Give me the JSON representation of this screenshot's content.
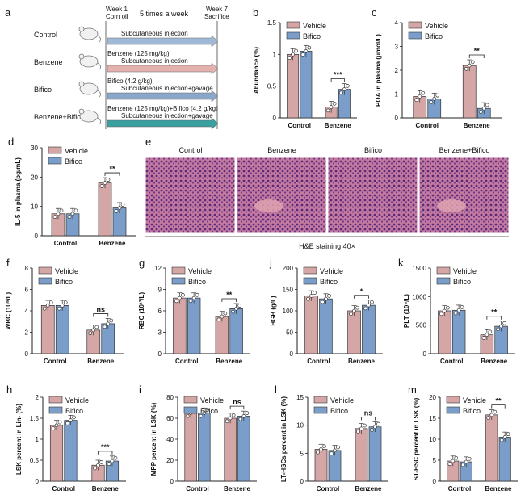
{
  "colors": {
    "vehicle": "#d4a6a6",
    "bifico": "#7a9ec9",
    "arrow_control": "#9fb9d6",
    "arrow_benzene": "#e3b1ae",
    "arrow_bifico": "#8aa7c9",
    "arrow_combo": "#3a9f9f",
    "he": "#b8557e"
  },
  "panel_a": {
    "letter": "a",
    "week1": "Week 1",
    "corn_oil": "Corn oil",
    "freq": "5 times a week",
    "week7": "Week 7",
    "sacrifice": "Sacrifice",
    "groups": [
      {
        "name": "Control",
        "label": "",
        "sub": "Subcutaneous injection",
        "icon": "mouse-icon"
      },
      {
        "name": "Benzene",
        "label": "Benzene (125 mg/kg)",
        "sub": "Subcutaneous injection",
        "icon": "mouse-icon"
      },
      {
        "name": "Bifico",
        "label": "Bifico (4.2 g/kg)",
        "sub": "Subcutaneous injection+gavage",
        "icon": "mouse-icon"
      },
      {
        "name": "Benzene+Bifico",
        "label": "Benzene (125 mg/kg)+Bifico (4.2 g/kg)",
        "sub": "Subcutaneous injection+gavage",
        "icon": "mouse-icon"
      }
    ]
  },
  "panel_e": {
    "letter": "e",
    "titles": [
      "Control",
      "Benzene",
      "Bifico",
      "Benzene+Bifico"
    ],
    "caption": "H&E staining 40×"
  },
  "legend": {
    "vehicle": "Vehicle",
    "bifico": "Bifico"
  },
  "chart_data": [
    {
      "id": "b",
      "type": "bar",
      "ylabel": "Abundance (%)",
      "categories": [
        "Control",
        "Benzene"
      ],
      "ylim": [
        0,
        1.5
      ],
      "yticks": [
        0,
        0.5,
        1.0,
        1.5
      ],
      "series": [
        {
          "name": "Vehicle",
          "values": [
            1.0,
            0.17
          ]
        },
        {
          "name": "Bifico",
          "values": [
            1.05,
            0.45
          ]
        }
      ],
      "sig": {
        "label": "***"
      }
    },
    {
      "id": "c",
      "type": "bar",
      "ylabel": "POA in plasma (μmol/L)",
      "categories": [
        "Control",
        "Benzene"
      ],
      "ylim": [
        0,
        4
      ],
      "yticks": [
        0,
        1,
        2,
        3,
        4
      ],
      "series": [
        {
          "name": "Vehicle",
          "values": [
            0.9,
            2.2
          ]
        },
        {
          "name": "Bifico",
          "values": [
            0.8,
            0.4
          ]
        }
      ],
      "sig": {
        "label": "**"
      }
    },
    {
      "id": "d",
      "type": "bar",
      "ylabel": "IL-5 in plasma (pg/mL)",
      "categories": [
        "Control",
        "Benzene"
      ],
      "ylim": [
        0,
        30
      ],
      "yticks": [
        0,
        10,
        20,
        30
      ],
      "series": [
        {
          "name": "Vehicle",
          "values": [
            7.5,
            18
          ]
        },
        {
          "name": "Bifico",
          "values": [
            7.5,
            9.5
          ]
        }
      ],
      "sig": {
        "label": "**"
      }
    },
    {
      "id": "f",
      "type": "bar",
      "ylabel": "WBC (10⁹/L)",
      "categories": [
        "Control",
        "Benzene"
      ],
      "ylim": [
        0,
        8
      ],
      "yticks": [
        0,
        2,
        4,
        6,
        8
      ],
      "series": [
        {
          "name": "Vehicle",
          "values": [
            4.5,
            2.2
          ]
        },
        {
          "name": "Bifico",
          "values": [
            4.5,
            2.8
          ]
        }
      ],
      "sig": {
        "label": "ns"
      }
    },
    {
      "id": "g",
      "type": "bar",
      "ylabel": "RBC (10¹²/L)",
      "categories": [
        "Control",
        "Benzene"
      ],
      "ylim": [
        0,
        12
      ],
      "yticks": [
        0,
        3,
        6,
        9,
        12
      ],
      "series": [
        {
          "name": "Vehicle",
          "values": [
            7.8,
            5.2
          ]
        },
        {
          "name": "Bifico",
          "values": [
            7.8,
            6.3
          ]
        }
      ],
      "sig": {
        "label": "**"
      }
    },
    {
      "id": "j",
      "type": "bar",
      "ylabel": "HGB (g/L)",
      "categories": [
        "Control",
        "Benzene"
      ],
      "ylim": [
        0,
        200
      ],
      "yticks": [
        0,
        50,
        100,
        150,
        200
      ],
      "series": [
        {
          "name": "Vehicle",
          "values": [
            135,
            100
          ]
        },
        {
          "name": "Bifico",
          "values": [
            128,
            113
          ]
        }
      ],
      "sig": {
        "label": "*"
      }
    },
    {
      "id": "k",
      "type": "bar",
      "ylabel": "PLT (10⁹/L)",
      "categories": [
        "Control",
        "Benzene"
      ],
      "ylim": [
        0,
        1500
      ],
      "yticks": [
        0,
        500,
        1000,
        1500
      ],
      "series": [
        {
          "name": "Vehicle",
          "values": [
            750,
            330
          ]
        },
        {
          "name": "Bifico",
          "values": [
            760,
            480
          ]
        }
      ],
      "sig": {
        "label": "**"
      }
    },
    {
      "id": "h",
      "type": "bar",
      "ylabel": "LSK percent in Lin- (%)",
      "categories": [
        "Control",
        "Benzene"
      ],
      "ylim": [
        0,
        2.0
      ],
      "yticks": [
        0,
        0.5,
        1.0,
        1.5,
        2.0
      ],
      "series": [
        {
          "name": "Vehicle",
          "values": [
            1.33,
            0.38
          ]
        },
        {
          "name": "Bifico",
          "values": [
            1.45,
            0.48
          ]
        }
      ],
      "sig": {
        "label": "***"
      }
    },
    {
      "id": "i",
      "type": "bar",
      "ylabel": "MPP percent in LSK (%)",
      "categories": [
        "Control",
        "Benzene"
      ],
      "ylim": [
        0,
        80
      ],
      "yticks": [
        0,
        20,
        40,
        60,
        80
      ],
      "series": [
        {
          "name": "Vehicle",
          "values": [
            65,
            60
          ]
        },
        {
          "name": "Bifico",
          "values": [
            65,
            62
          ]
        }
      ],
      "sig": {
        "label": "ns"
      }
    },
    {
      "id": "l",
      "type": "bar",
      "ylabel": "LT-HSCs percent in LSK (%)",
      "categories": [
        "Control",
        "Benzene"
      ],
      "ylim": [
        0,
        15
      ],
      "yticks": [
        0,
        5,
        10,
        15
      ],
      "series": [
        {
          "name": "Vehicle",
          "values": [
            5.7,
            9.4
          ]
        },
        {
          "name": "Bifico",
          "values": [
            5.5,
            9.7
          ]
        }
      ],
      "sig": {
        "label": "ns"
      }
    },
    {
      "id": "m",
      "type": "bar",
      "ylabel": "ST-HSC percent in LSK (%)",
      "categories": [
        "Control",
        "Benzene"
      ],
      "ylim": [
        0,
        20
      ],
      "yticks": [
        0,
        5,
        10,
        15,
        20
      ],
      "series": [
        {
          "name": "Vehicle",
          "values": [
            4.8,
            15.8
          ]
        },
        {
          "name": "Bifico",
          "values": [
            4.6,
            10.5
          ]
        }
      ],
      "sig": {
        "label": "**"
      }
    }
  ]
}
